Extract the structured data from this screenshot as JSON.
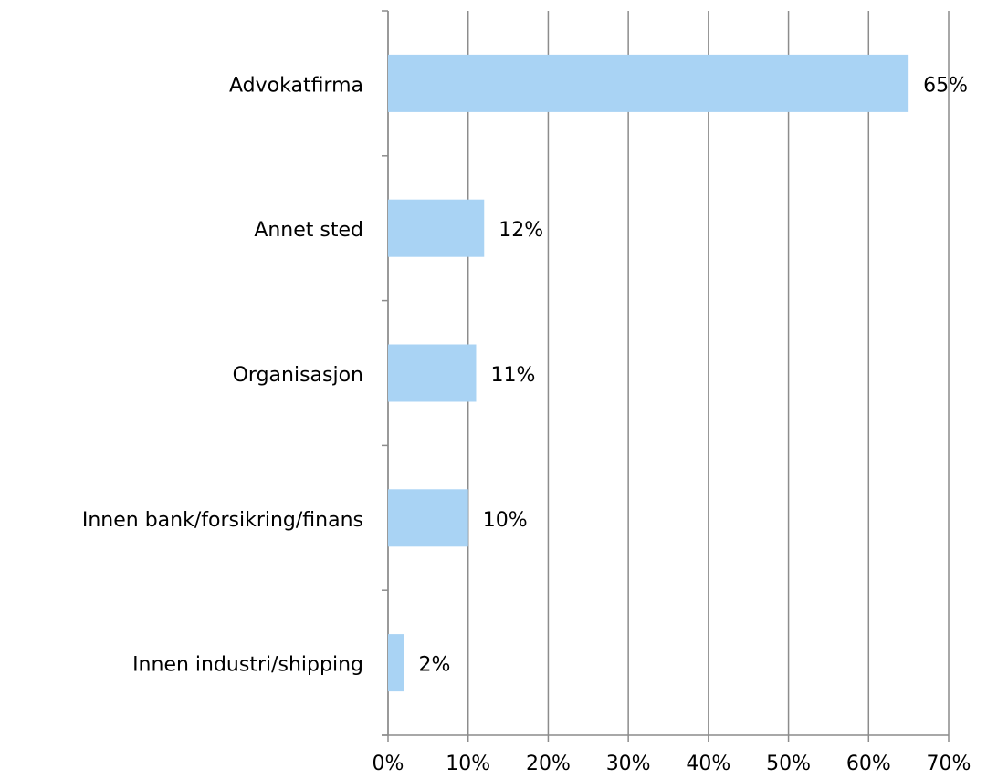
{
  "chart_data": {
    "type": "bar",
    "orientation": "horizontal",
    "categories": [
      "Advokatfirma",
      "Annet sted",
      "Organisasjon",
      "Innen bank/forsikring/finans",
      "Innen industri/shipping"
    ],
    "values": [
      65,
      12,
      11,
      10,
      2
    ],
    "value_labels": [
      "65%",
      "12%",
      "11%",
      "10%",
      "2%"
    ],
    "color": "#a9d3f4",
    "xlim": [
      0,
      70
    ],
    "xticks": [
      {
        "value": 0,
        "label": "0%"
      },
      {
        "value": 10,
        "label": "10%"
      },
      {
        "value": 20,
        "label": "20%"
      },
      {
        "value": 30,
        "label": "30%"
      },
      {
        "value": 40,
        "label": "40%"
      },
      {
        "value": 50,
        "label": "50%"
      },
      {
        "value": 60,
        "label": "60%"
      },
      {
        "value": 70,
        "label": "70%"
      }
    ],
    "grid": true
  }
}
